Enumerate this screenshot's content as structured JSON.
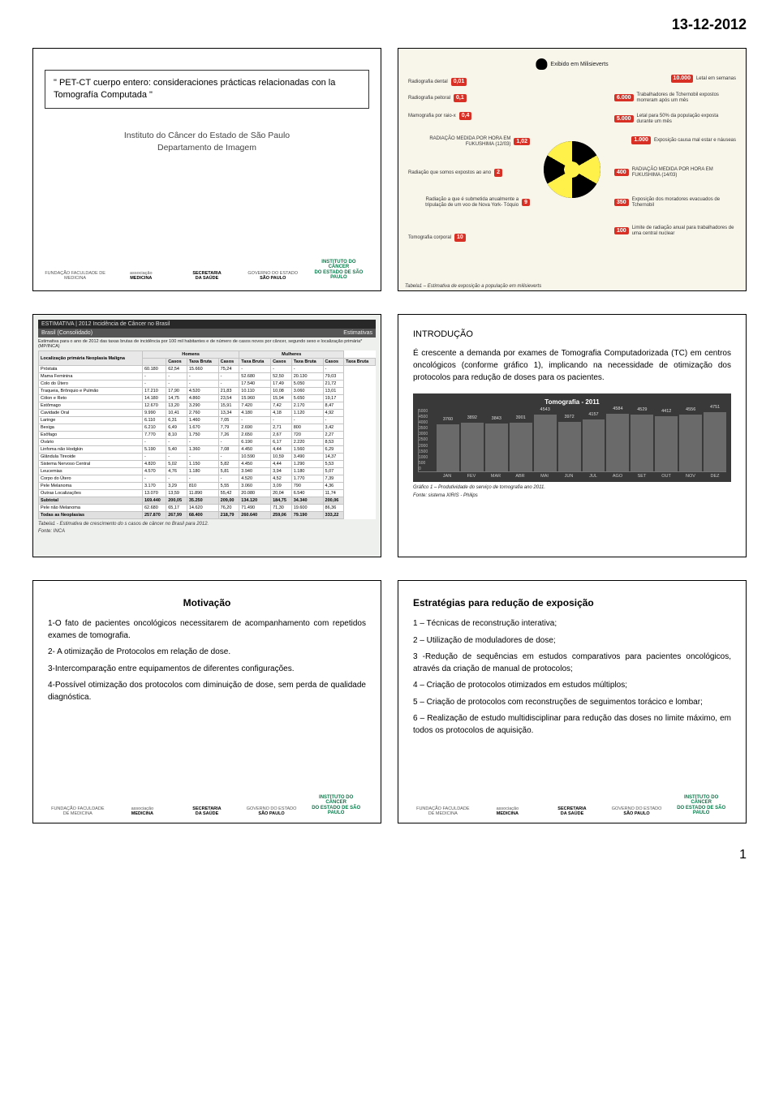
{
  "date": "13-12-2012",
  "page_number": "1",
  "slide1": {
    "title_prefix": "\"",
    "title_line1": "PET-CT cuerpo entero: consideraciones prácticas relacionadas con la Tomografía Computada",
    "title_suffix": "\"",
    "institute": "Instituto do Câncer do Estado de São Paulo",
    "dept": "Departamento de Imagem",
    "logos": {
      "l1": "FUNDAÇÃO FACULDADE DE MEDICINA",
      "l2a": "associação",
      "l2b": "MEDICINA",
      "l3a": "SECRETARIA",
      "l3b": "DA SAÚDE",
      "l4a": "GOVERNO DO ESTADO",
      "l4b": "SÃO PAULO",
      "l5a": "INSTITUTO DO",
      "l5b": "CÂNCER",
      "l5c": "DO ESTADO DE SÃO PAULO"
    }
  },
  "slide2": {
    "header": "Exibido em Milisieverts",
    "items_left": [
      {
        "val": "0,01",
        "txt": "Radiografia dental"
      },
      {
        "val": "0,1",
        "txt": "Radiografia peitoral"
      },
      {
        "val": "0,4",
        "txt": "Mamografia por raio-x"
      },
      {
        "val": "1,02",
        "txt": "RADIAÇÃO MEDIDA POR HORA EM FUKUSHIMA (12/03)",
        "hl": true
      },
      {
        "val": "2",
        "txt": "Radiação que somos expostos ao ano"
      },
      {
        "val": "9",
        "txt": "Radiação a que é submetida anualmente a tripulação de um voo de Nova York- Tóquio"
      },
      {
        "val": "10",
        "txt": "Tomografia corporal"
      }
    ],
    "items_right": [
      {
        "val": "10.000",
        "txt": "Letal em semanas"
      },
      {
        "val": "6.000",
        "txt": "Trabalhadores de Tchernobil expostos morreram após um mês"
      },
      {
        "val": "5.000",
        "txt": "Letal para 50% da população exposta durante um mês"
      },
      {
        "val": "1.000",
        "txt": "Exposição causa mal estar e náuseas"
      },
      {
        "val": "400",
        "txt": "RADIAÇÃO MEDIDA POR HORA EM FUKUSHIMA (14/03)",
        "hl": true
      },
      {
        "val": "350",
        "txt": "Exposição dos moradores evacuados de Tchernobil"
      },
      {
        "val": "100",
        "txt": "Limite de radiação anual para trabalhadores de uma central nuclear"
      }
    ],
    "caption": "Tabela1 – Estimativa de exposição a população em milisieverts"
  },
  "slide3": {
    "header": "ESTIMATIVA   |   2012   Incidência de Câncer no Brasil",
    "subheader_l": "Brasil (Consolidado)",
    "subheader_r": "Estimativas",
    "intro": "Estimativa para o ano de 2012 das taxas brutas de incidência por 100 mil habitantes e de número de casos novos por câncer, segundo sexo e localização primária* (MP/INCA)",
    "col_group1": "Homens",
    "col_group2": "Mulheres",
    "sub_cols": [
      "Localização primária Neoplasia Maligna",
      "Casos",
      "Taxa Bruta",
      "Casos",
      "Taxa Bruta",
      "Casos",
      "Taxa Bruta",
      "Casos",
      "Taxa Bruta"
    ],
    "rows": [
      [
        "Próstata",
        "60.180",
        "62,54",
        "15.660",
        "75,24",
        "-",
        "-",
        "-",
        "-"
      ],
      [
        "Mama Feminina",
        "-",
        "-",
        "-",
        "-",
        "52.680",
        "52,50",
        "20.130",
        "79,03"
      ],
      [
        "Colo do Útero",
        "-",
        "-",
        "-",
        "-",
        "17.540",
        "17,49",
        "5.050",
        "21,72"
      ],
      [
        "Traqueia, Brônquio e Pulmão",
        "17.210",
        "17,90",
        "4.520",
        "21,83",
        "10.110",
        "10,08",
        "3.060",
        "13,01"
      ],
      [
        "Cólon e Reto",
        "14.180",
        "14,75",
        "4.860",
        "23,54",
        "15.960",
        "15,94",
        "5.650",
        "19,17"
      ],
      [
        "Estômago",
        "12.670",
        "13,20",
        "3.290",
        "15,91",
        "7.420",
        "7,42",
        "2.170",
        "8,47"
      ],
      [
        "Cavidade Oral",
        "9.990",
        "10,41",
        "2.760",
        "13,34",
        "4.180",
        "4,18",
        "1.120",
        "4,92"
      ],
      [
        "Laringe",
        "6.110",
        "6,31",
        "1.460",
        "7,05",
        "-",
        "-",
        "-",
        "-"
      ],
      [
        "Bexiga",
        "6.210",
        "6,49",
        "1.670",
        "7,79",
        "2.690",
        "2,71",
        "800",
        "3,42"
      ],
      [
        "Esôfago",
        "7.770",
        "8,10",
        "1.750",
        "7,26",
        "2.650",
        "2,67",
        "720",
        "2,27"
      ],
      [
        "Ovário",
        "-",
        "-",
        "-",
        "-",
        "6.190",
        "6,17",
        "2.220",
        "8,53"
      ],
      [
        "Linfoma não Hodgkin",
        "5.190",
        "5,40",
        "1.360",
        "7,08",
        "4.450",
        "4,44",
        "1.560",
        "6,29"
      ],
      [
        "Glândula Tireoide",
        "-",
        "-",
        "-",
        "-",
        "10.590",
        "10,59",
        "3.490",
        "14,37"
      ],
      [
        "Sistema Nervoso Central",
        "4.820",
        "5,02",
        "1.150",
        "5,82",
        "4.450",
        "4,44",
        "1.290",
        "5,53"
      ],
      [
        "Leucemias",
        "4.570",
        "4,76",
        "1.180",
        "5,81",
        "3.940",
        "3,94",
        "1.180",
        "5,07"
      ],
      [
        "Corpo do Útero",
        "-",
        "-",
        "-",
        "-",
        "4.520",
        "4,52",
        "1.770",
        "7,39"
      ],
      [
        "Pele Melanoma",
        "3.170",
        "3,29",
        "810",
        "5,55",
        "3.060",
        "3,09",
        "790",
        "4,36"
      ],
      [
        "Outras Localizações",
        "13.070",
        "13,59",
        "11.890",
        "55,42",
        "20.080",
        "20,04",
        "6.540",
        "11,74"
      ],
      [
        "Subtotal",
        "169.440",
        "200,05",
        "35.250",
        "209,00",
        "134.120",
        "184,75",
        "34.340",
        "200,06"
      ],
      [
        "Pele não Melanoma",
        "62.680",
        "65,17",
        "14.620",
        "76,20",
        "71.490",
        "71,30",
        "19.600",
        "86,36"
      ],
      [
        "Todas as Neoplasias",
        "257.870",
        "267,99",
        "68.400",
        "218,79",
        "260.640",
        "259,06",
        "79.190",
        "333,22"
      ]
    ],
    "caption": "Tabela1 - Estimativa de crescimento do s casos de câncer no Brasil para 2012.",
    "caption2": "Fonte: INCA"
  },
  "slide4": {
    "heading": "INTRODUÇÃO",
    "body": "É crescente a demanda por exames de Tomografia Computadorizada (TC) em centros oncológicos (conforme gráfico 1), implicando na necessidade de otimização dos protocolos para redução de doses para os pacientes.",
    "chart": {
      "title": "Tomografia - 2011",
      "type": "bar",
      "ylim": [
        0,
        5000
      ],
      "ytick_step": 500,
      "yticks": [
        "5000",
        "4500",
        "4000",
        "3500",
        "3000",
        "2500",
        "2000",
        "1500",
        "1000",
        "500",
        "0"
      ],
      "background_color": "#393939",
      "bar_color": "#6a6a6a",
      "text_color": "#dddddd",
      "months": [
        "JAN",
        "FEV",
        "MAR",
        "ABR",
        "MAI",
        "JUN",
        "JUL",
        "AGO",
        "SET",
        "OUT",
        "NOV",
        "DEZ"
      ],
      "values": [
        3760,
        3892,
        3843,
        3901,
        4543,
        3972,
        4157,
        4584,
        4529,
        4412,
        4556,
        4751
      ]
    },
    "caption": "Gráfico 1 – Produtividade do serviço de tomografia ano 2011.",
    "caption2": "Fonte: sistema XIRIS - Philips"
  },
  "slide5": {
    "heading": "Motivação",
    "paras": [
      "1-O fato de pacientes oncológicos necessitarem de acompanhamento com repetidos exames de tomografia.",
      "2- A otimização de Protocolos em relação de dose.",
      "3-Intercomparação entre equipamentos de diferentes configurações.",
      "4-Possível otimização dos protocolos com diminuição de dose, sem perda de qualidade diagnóstica."
    ]
  },
  "slide6": {
    "heading": "Estratégias para redução de exposição",
    "paras": [
      "1 – Técnicas de reconstrução interativa;",
      "2 – Utilização de moduladores de dose;",
      "3 -Redução de sequências em estudos comparativos para pacientes oncológicos, através da criação de manual de protocolos;",
      "4 – Criação de protocolos otimizados em estudos múltiplos;",
      "5 – Criação de protocolos com reconstruções de seguimentos torácico e lombar;",
      "6 – Realização de estudo multidisciplinar para redução das doses no limite máximo, em todos os protocolos de aquisição."
    ]
  }
}
